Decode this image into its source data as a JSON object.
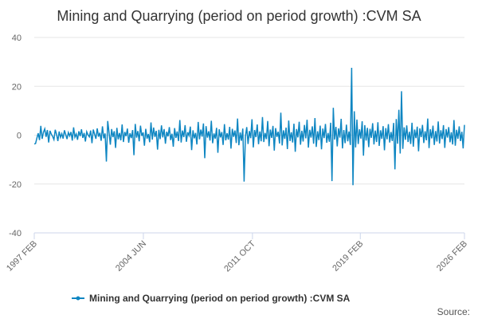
{
  "colors": {
    "series": "#0e86c2",
    "grid": "#e6e6e6",
    "axis": "#ccd6eb"
  },
  "source_label": "Source:",
  "chart_data": {
    "type": "line",
    "title": "Mining and Quarrying (period on period growth) :CVM SA",
    "xlabel": "",
    "ylabel": "",
    "ylim": [
      -40,
      40
    ],
    "yticks": [
      40,
      20,
      0,
      -20,
      -40
    ],
    "x_start": "1997 FEB",
    "x_end": "2026 FEB",
    "xticks": [
      {
        "label": "1997 FEB",
        "pos": 0.0
      },
      {
        "label": "2004 JUN",
        "pos": 0.2536
      },
      {
        "label": "2011 OCT",
        "pos": 0.5072
      },
      {
        "label": "2019 FEB",
        "pos": 0.7579
      },
      {
        "label": "2026 FEB",
        "pos": 1.0
      }
    ],
    "legend": "bottom-center",
    "series": [
      {
        "name": "Mining and Quarrying (period on period growth) :CVM SA",
        "frequency": "monthly",
        "values": [
          -3.6,
          -3.4,
          -1.2,
          0.8,
          -2.0,
          3.8,
          -1.5,
          1.2,
          2.6,
          -0.7,
          2.1,
          -3.0,
          1.8,
          0.4,
          -0.5,
          -1.8,
          2.2,
          0.3,
          -2.4,
          1.5,
          -0.9,
          0.6,
          -1.4,
          2.0,
          0.2,
          -1.6,
          1.1,
          -0.3,
          1.3,
          -2.2,
          3.2,
          -0.8,
          0.5,
          -1.9,
          1.6,
          -0.4,
          2.4,
          -1.1,
          0.9,
          -2.6,
          1.4,
          0.1,
          -0.7,
          1.9,
          -3.3,
          2.3,
          0.4,
          -1.5,
          2.8,
          -0.6,
          1.0,
          -2.3,
          3.6,
          -1.3,
          0.7,
          -10.8,
          5.8,
          1.2,
          -3.9,
          2.5,
          -0.8,
          1.6,
          -5.2,
          3.0,
          -1.7,
          0.9,
          -2.1,
          4.4,
          -2.8,
          1.3,
          -0.4,
          2.7,
          -3.1,
          0.8,
          -1.2,
          2.1,
          -8.2,
          4.6,
          -1.0,
          1.7,
          -2.5,
          3.9,
          -0.3,
          1.1,
          -4.3,
          2.6,
          -1.4,
          0.5,
          -2.9,
          5.2,
          -1.8,
          3.1,
          -0.7,
          1.8,
          -5.9,
          2.2,
          -1.6,
          4.0,
          -0.9,
          2.5,
          -3.5,
          1.4,
          -0.5,
          3.3,
          -2.0,
          0.6,
          -4.7,
          2.9,
          -1.1,
          1.5,
          -2.4,
          6.2,
          -3.0,
          1.9,
          -0.8,
          4.1,
          -2.7,
          1.2,
          -0.2,
          3.5,
          -6.1,
          2.0,
          -1.3,
          0.9,
          -3.8,
          5.4,
          -1.7,
          2.3,
          -0.6,
          4.8,
          -9.4,
          3.7,
          -1.0,
          1.6,
          -2.2,
          5.9,
          -3.3,
          0.7,
          -1.4,
          3.0,
          -7.2,
          2.4,
          -0.9,
          1.3,
          -4.0,
          4.5,
          -2.1,
          0.8,
          -1.8,
          3.4,
          -5.5,
          2.6,
          -0.7,
          1.9,
          -3.2,
          6.8,
          -4.1,
          1.1,
          -2.3,
          2.7,
          -19.0,
          -0.5,
          3.3,
          -3.6,
          1.7,
          -1.2,
          6.5,
          -5.0,
          2.1,
          -0.8,
          4.4,
          -3.7,
          1.5,
          -2.5,
          7.4,
          -2.8,
          0.9,
          -1.6,
          5.8,
          -4.5,
          2.3,
          -1.1,
          3.8,
          -6.3,
          2.9,
          -0.7,
          1.4,
          -3.4,
          9.2,
          -4.2,
          2.0,
          -1.5,
          3.1,
          -5.7,
          6.0,
          -2.4,
          1.2,
          -3.0,
          4.7,
          -6.8,
          2.5,
          -0.9,
          5.5,
          -3.9,
          1.8,
          -2.6,
          4.2,
          -1.3,
          6.3,
          -5.1,
          2.2,
          -1.0,
          3.6,
          -3.5,
          7.0,
          -4.8,
          1.6,
          -2.0,
          3.9,
          -5.8,
          2.7,
          -1.2,
          4.6,
          -3.1,
          0.9,
          -2.7,
          5.1,
          -18.8,
          11.2,
          -1.8,
          3.4,
          -4.6,
          2.8,
          -1.0,
          6.7,
          -5.4,
          2.1,
          -3.3,
          4.3,
          -2.5,
          1.5,
          -4.0,
          27.6,
          -20.5,
          9.8,
          -5.0,
          6.4,
          -3.6,
          2.4,
          -1.4,
          5.7,
          -8.4,
          4.1,
          -2.2,
          3.0,
          -4.9,
          2.6,
          -1.1,
          4.9,
          -3.8,
          1.9,
          -2.8,
          5.3,
          -4.4,
          2.0,
          -1.5,
          3.7,
          -6.2,
          2.9,
          -1.7,
          4.5,
          -3.0,
          1.3,
          -2.4,
          5.0,
          -14.0,
          6.6,
          -3.5,
          10.4,
          -7.5,
          18.0,
          -5.6,
          3.2,
          -1.9,
          4.0,
          -2.8,
          1.4,
          -3.6,
          5.1,
          -4.7,
          2.3,
          -1.2,
          3.5,
          -6.6,
          2.8,
          -0.8,
          4.2,
          -3.2,
          1.6,
          -2.1,
          6.8,
          -5.3,
          2.4,
          -1.3,
          3.9,
          -4.0,
          1.7,
          -2.6,
          5.6,
          -3.4,
          2.0,
          -1.6,
          4.1,
          -5.2,
          2.5,
          -1.0,
          3.3,
          -2.9,
          1.2,
          -3.8,
          6.2,
          -4.3,
          2.2,
          -1.5,
          3.6,
          -2.4,
          1.4,
          -5.4,
          4.2
        ]
      }
    ]
  }
}
